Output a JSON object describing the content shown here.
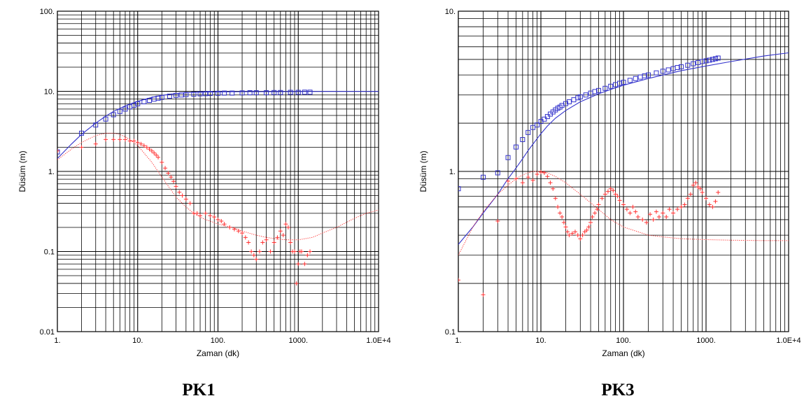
{
  "chart_data": [
    {
      "type": "scatter",
      "title": "PK1",
      "xlabel": "Zaman (dk)",
      "ylabel": "Düsüm (m)",
      "xscale": "log",
      "yscale": "log",
      "xlim": [
        1,
        10000
      ],
      "ylim": [
        0.01,
        100
      ],
      "grid": true,
      "x_tick_labels": [
        "1.",
        "10.",
        "100.",
        "1000.",
        "1.0E+4"
      ],
      "y_tick_labels": [
        "0.01",
        "0.1",
        "1.",
        "10.",
        "100."
      ],
      "series": [
        {
          "color": "#3333cc",
          "marker": "square",
          "x": [
            1,
            2,
            3,
            4,
            5,
            6,
            7,
            8,
            9,
            10,
            12,
            14,
            16,
            18,
            20,
            25,
            30,
            35,
            40,
            50,
            60,
            70,
            80,
            100,
            120,
            150,
            200,
            250,
            300,
            400,
            500,
            600,
            800,
            1000,
            1200,
            1400
          ],
          "y": [
            1.75,
            3.0,
            3.8,
            4.5,
            5.1,
            5.6,
            6.0,
            6.4,
            6.7,
            7.0,
            7.4,
            7.7,
            8.0,
            8.2,
            8.4,
            8.7,
            8.9,
            9.0,
            9.1,
            9.2,
            9.3,
            9.35,
            9.4,
            9.45,
            9.5,
            9.5,
            9.55,
            9.6,
            9.6,
            9.6,
            9.65,
            9.65,
            9.7,
            9.7,
            9.75,
            9.75
          ]
        },
        {
          "color": "#3333cc",
          "marker": "line",
          "x": [
            1,
            1.5,
            2,
            3,
            4,
            5,
            7,
            10,
            15,
            20,
            30,
            50,
            70,
            100,
            200,
            500,
            1000,
            2000,
            5000,
            10000
          ],
          "y": [
            1.45,
            2.2,
            2.9,
            4.0,
            4.9,
            5.6,
            6.6,
            7.5,
            8.4,
            8.9,
            9.4,
            9.7,
            9.8,
            9.85,
            9.9,
            9.92,
            9.94,
            9.95,
            9.95,
            9.95
          ]
        },
        {
          "color": "#ff3333",
          "marker": "plus",
          "x": [
            1,
            2,
            3,
            4,
            5,
            6,
            7,
            8,
            9,
            10,
            11,
            12,
            13,
            14,
            15,
            16,
            17,
            18,
            20,
            22,
            24,
            26,
            28,
            30,
            33,
            36,
            40,
            45,
            50,
            55,
            60,
            70,
            80,
            90,
            100,
            110,
            120,
            140,
            160,
            180,
            200,
            220,
            240,
            260,
            280,
            300,
            330,
            360,
            400,
            450,
            500,
            550,
            600,
            650,
            700,
            750,
            800,
            850,
            900,
            950,
            1000,
            1050,
            1100,
            1200,
            1300,
            1400
          ],
          "y": [
            1.8,
            2.0,
            2.2,
            2.5,
            2.5,
            2.5,
            2.5,
            2.4,
            2.4,
            2.3,
            2.2,
            2.1,
            2.0,
            1.9,
            1.8,
            1.7,
            1.6,
            1.5,
            1.3,
            1.1,
            0.95,
            0.85,
            0.75,
            0.65,
            0.55,
            0.5,
            0.45,
            0.4,
            0.3,
            0.3,
            0.28,
            0.3,
            0.28,
            0.27,
            0.25,
            0.24,
            0.22,
            0.2,
            0.19,
            0.18,
            0.17,
            0.15,
            0.13,
            0.1,
            0.09,
            0.08,
            0.1,
            0.13,
            0.14,
            0.1,
            0.13,
            0.15,
            0.18,
            0.16,
            0.22,
            0.2,
            0.13,
            0.1,
            0.1,
            0.04,
            0.07,
            0.1,
            0.1,
            0.07,
            0.09,
            0.1
          ]
        },
        {
          "color": "#ff3333",
          "marker": "dotted",
          "x": [
            1,
            1.5,
            2,
            3,
            4,
            5,
            6,
            7,
            8,
            10,
            12,
            15,
            20,
            25,
            30,
            40,
            50,
            60,
            70,
            80,
            100,
            150,
            200,
            300,
            400,
            500,
            700,
            1000,
            1500,
            2000,
            3000,
            5000,
            7000,
            10000
          ],
          "y": [
            1.4,
            1.9,
            2.3,
            2.8,
            3.0,
            3.0,
            2.9,
            2.7,
            2.5,
            2.1,
            1.7,
            1.3,
            0.85,
            0.62,
            0.48,
            0.36,
            0.3,
            0.27,
            0.25,
            0.24,
            0.22,
            0.2,
            0.18,
            0.16,
            0.15,
            0.145,
            0.14,
            0.14,
            0.15,
            0.17,
            0.2,
            0.26,
            0.3,
            0.33
          ]
        }
      ]
    },
    {
      "type": "scatter",
      "title": "PK3",
      "xlabel": "Zaman (dk)",
      "ylabel": "Düsüm (m)",
      "xscale": "log",
      "yscale": "log",
      "xlim": [
        1,
        10000
      ],
      "ylim": [
        0.1,
        10
      ],
      "grid": true,
      "x_tick_labels": [
        "1.",
        "10.",
        "100.",
        "1000.",
        "1.0E+4"
      ],
      "y_tick_labels": [
        "0.1",
        "1.",
        "10."
      ],
      "series": [
        {
          "color": "#3333cc",
          "marker": "square",
          "x": [
            1,
            2,
            3,
            4,
            5,
            6,
            7,
            8,
            9,
            10,
            11,
            12,
            13,
            14,
            15,
            16,
            17,
            18,
            20,
            22,
            25,
            28,
            30,
            35,
            40,
            45,
            50,
            60,
            70,
            80,
            90,
            100,
            120,
            140,
            160,
            180,
            200,
            250,
            300,
            350,
            400,
            450,
            500,
            600,
            700,
            800,
            900,
            1000,
            1100,
            1200,
            1300,
            1400
          ],
          "y": [
            0.78,
            0.92,
            0.98,
            1.22,
            1.42,
            1.58,
            1.75,
            1.88,
            1.95,
            2.05,
            2.12,
            2.2,
            2.28,
            2.35,
            2.42,
            2.48,
            2.52,
            2.58,
            2.65,
            2.72,
            2.8,
            2.88,
            2.92,
            3.0,
            3.08,
            3.15,
            3.2,
            3.3,
            3.4,
            3.48,
            3.55,
            3.6,
            3.7,
            3.8,
            3.88,
            3.95,
            4.0,
            4.12,
            4.22,
            4.3,
            4.38,
            4.45,
            4.5,
            4.6,
            4.7,
            4.78,
            4.85,
            4.9,
            4.95,
            5.0,
            5.05,
            5.1
          ]
        },
        {
          "color": "#3333cc",
          "marker": "line",
          "x": [
            1,
            1.5,
            2,
            3,
            4,
            5,
            6,
            7,
            8,
            10,
            12,
            15,
            20,
            30,
            50,
            70,
            100,
            200,
            500,
            1000,
            2000,
            5000,
            10000
          ],
          "y": [
            0.35,
            0.45,
            0.55,
            0.72,
            0.9,
            1.05,
            1.2,
            1.35,
            1.48,
            1.72,
            1.92,
            2.15,
            2.4,
            2.72,
            3.05,
            3.25,
            3.45,
            3.8,
            4.25,
            4.55,
            4.85,
            5.25,
            5.5
          ]
        },
        {
          "color": "#ff3333",
          "marker": "plus",
          "x": [
            1,
            2,
            3,
            4,
            5,
            6,
            7,
            8,
            9,
            10,
            11,
            12,
            13,
            14,
            15,
            16,
            17,
            18,
            19,
            20,
            21,
            22,
            24,
            26,
            28,
            30,
            32,
            34,
            36,
            38,
            40,
            42,
            45,
            48,
            50,
            55,
            60,
            65,
            70,
            75,
            80,
            85,
            90,
            100,
            110,
            120,
            130,
            140,
            150,
            170,
            190,
            210,
            230,
            250,
            270,
            300,
            330,
            360,
            400,
            450,
            500,
            550,
            600,
            650,
            700,
            750,
            800,
            850,
            900,
            1000,
            1100,
            1200,
            1300,
            1400
          ],
          "y": [
            0.21,
            0.17,
            0.49,
            0.87,
            0.9,
            0.85,
            0.92,
            0.88,
            0.96,
            0.99,
            0.98,
            0.93,
            0.85,
            0.78,
            0.68,
            0.6,
            0.55,
            0.52,
            0.48,
            0.45,
            0.42,
            0.4,
            0.41,
            0.42,
            0.4,
            0.38,
            0.4,
            0.42,
            0.43,
            0.45,
            0.48,
            0.52,
            0.55,
            0.58,
            0.62,
            0.68,
            0.72,
            0.75,
            0.78,
            0.76,
            0.72,
            0.7,
            0.66,
            0.62,
            0.58,
            0.55,
            0.6,
            0.56,
            0.52,
            0.5,
            0.48,
            0.54,
            0.5,
            0.56,
            0.52,
            0.55,
            0.52,
            0.58,
            0.55,
            0.58,
            0.6,
            0.62,
            0.68,
            0.72,
            0.82,
            0.85,
            0.8,
            0.78,
            0.74,
            0.68,
            0.62,
            0.6,
            0.65,
            0.74
          ]
        },
        {
          "color": "#ff3333",
          "marker": "dotted",
          "x": [
            1,
            1.5,
            2,
            3,
            4,
            5,
            6,
            7,
            8,
            10,
            12,
            15,
            20,
            30,
            50,
            70,
            100,
            200,
            300,
            500,
            1000,
            2000,
            5000,
            10000
          ],
          "y": [
            0.3,
            0.45,
            0.56,
            0.72,
            0.82,
            0.9,
            0.95,
            0.98,
            1.0,
            1.0,
            0.98,
            0.93,
            0.85,
            0.72,
            0.58,
            0.5,
            0.45,
            0.4,
            0.39,
            0.38,
            0.375,
            0.372,
            0.37,
            0.37
          ]
        }
      ]
    }
  ]
}
